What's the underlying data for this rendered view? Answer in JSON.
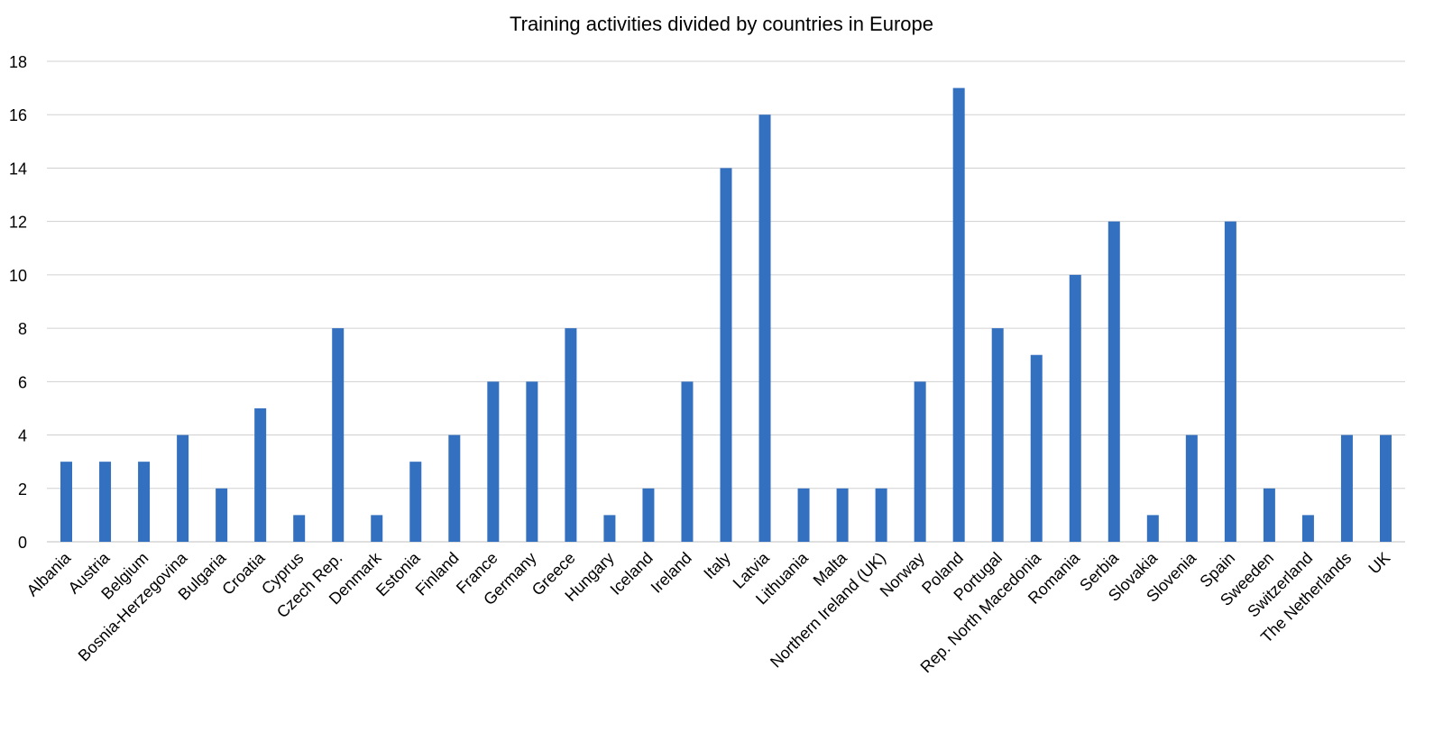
{
  "chart_data": {
    "type": "bar",
    "title": "Training activities divided by countries in Europe",
    "xlabel": "",
    "ylabel": "",
    "ylim": [
      0,
      18
    ],
    "yticks": [
      0,
      2,
      4,
      6,
      8,
      10,
      12,
      14,
      16,
      18
    ],
    "grid": true,
    "legend": "none",
    "bar_color": "#3470c0",
    "categories": [
      "Albania",
      "Austria",
      "Belgium",
      "Bosnia-Herzegovina",
      "Bulgaria",
      "Croatia",
      "Cyprus",
      "Czech Rep.",
      "Denmark",
      "Estonia",
      "Finland",
      "France",
      "Germany",
      "Greece",
      "Hungary",
      "Iceland",
      "Ireland",
      "Italy",
      "Latvia",
      "Lithuania",
      "Malta",
      "Northern Ireland (UK)",
      "Norway",
      "Poland",
      "Portugal",
      "Rep. North Macedonia",
      "Romania",
      "Serbia",
      "Slovakia",
      "Slovenia",
      "Spain",
      "Sweeden",
      "Switzerland",
      "The Netherlands",
      "UK"
    ],
    "values": [
      3,
      3,
      3,
      4,
      2,
      5,
      1,
      8,
      1,
      3,
      4,
      6,
      6,
      8,
      1,
      2,
      6,
      14,
      16,
      2,
      2,
      2,
      6,
      17,
      8,
      7,
      10,
      12,
      1,
      4,
      12,
      2,
      1,
      4,
      4
    ]
  }
}
